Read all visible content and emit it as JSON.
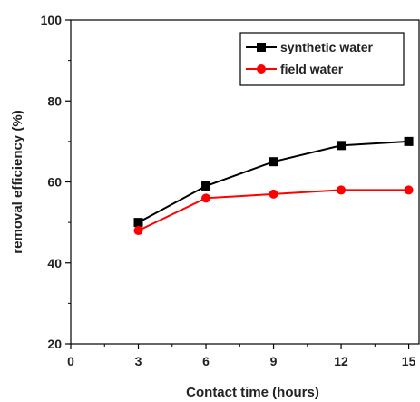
{
  "chart_data": {
    "type": "line",
    "title": "",
    "xlabel": "Contact time (hours)",
    "ylabel": "removal efficiency (%)",
    "xlim": [
      0,
      15.5
    ],
    "ylim": [
      20,
      100
    ],
    "xticks": [
      0,
      3,
      6,
      9,
      12,
      15
    ],
    "yticks": [
      20,
      40,
      60,
      80,
      100
    ],
    "xtick_labels": [
      "0",
      "3",
      "6",
      "9",
      "12",
      "15"
    ],
    "ytick_labels": [
      "20",
      "40",
      "60",
      "80",
      "100"
    ],
    "grid": false,
    "legend_position": "top-right",
    "series": [
      {
        "name": "synthetic water",
        "color": "#000000",
        "marker": "square",
        "x": [
          3,
          6,
          9,
          12,
          15
        ],
        "y": [
          50,
          59,
          65,
          69,
          70
        ]
      },
      {
        "name": "field water",
        "color": "#ff0000",
        "marker": "circle",
        "x": [
          3,
          6,
          9,
          12,
          15
        ],
        "y": [
          48,
          56,
          57,
          58,
          58
        ]
      }
    ]
  }
}
